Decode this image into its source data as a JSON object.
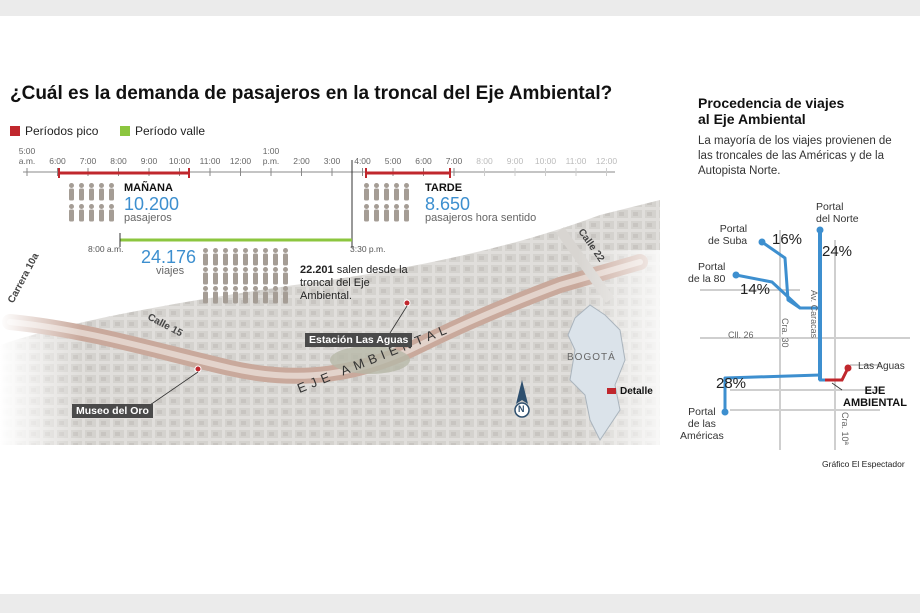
{
  "title": "¿Cuál es la demanda de pasajeros en la troncal del Eje Ambiental?",
  "legend": {
    "peak": {
      "label": "Períodos pico",
      "color": "#c0272d"
    },
    "valley": {
      "label": "Período valle",
      "color": "#8cc63f"
    }
  },
  "timeline": [
    {
      "l1": "5:00",
      "l2": "a.m.",
      "faint": false
    },
    {
      "l1": "6:00",
      "l2": "",
      "faint": false
    },
    {
      "l1": "7:00",
      "l2": "",
      "faint": false
    },
    {
      "l1": "8:00",
      "l2": "",
      "faint": false
    },
    {
      "l1": "9:00",
      "l2": "",
      "faint": false
    },
    {
      "l1": "10:00",
      "l2": "",
      "faint": false
    },
    {
      "l1": "11:00",
      "l2": "",
      "faint": false
    },
    {
      "l1": "12:00",
      "l2": "",
      "faint": false
    },
    {
      "l1": "1:00",
      "l2": "p.m.",
      "faint": false
    },
    {
      "l1": "2:00",
      "l2": "",
      "faint": false
    },
    {
      "l1": "3:00",
      "l2": "",
      "faint": false
    },
    {
      "l1": "4:00",
      "l2": "",
      "faint": false
    },
    {
      "l1": "5:00",
      "l2": "",
      "faint": false
    },
    {
      "l1": "6:00",
      "l2": "",
      "faint": false
    },
    {
      "l1": "7:00",
      "l2": "",
      "faint": false
    },
    {
      "l1": "8:00",
      "l2": "",
      "faint": true
    },
    {
      "l1": "9:00",
      "l2": "",
      "faint": true
    },
    {
      "l1": "10:00",
      "l2": "",
      "faint": true
    },
    {
      "l1": "11:00",
      "l2": "",
      "faint": true
    },
    {
      "l1": "12:00",
      "l2": "",
      "faint": true
    }
  ],
  "morning": {
    "label": "MAÑANA",
    "value": "10.200",
    "unit": "pasajeros"
  },
  "afternoon": {
    "label": "TARDE",
    "value": "8.650",
    "unit": "pasajeros hora sentido"
  },
  "valley": {
    "start": "8:00 a.m.",
    "end": "3:30 p.m.",
    "value": "24.176",
    "unit": "viajes",
    "note_value": "22.201",
    "note_text": " salen desde la troncal del Eje Ambiental."
  },
  "map_labels": {
    "carrera": "Carrera 10a",
    "calle15": "Calle 15",
    "calle22": "Calle 22",
    "eje": "EJE AMBIENTAL",
    "station": "Estación Las Aguas",
    "museum": "Museo del Oro",
    "city": "BOGOTÁ",
    "detail": "Detalle",
    "north": "N"
  },
  "right": {
    "title_line1": "Procedencia de viajes",
    "title_line2": "al Eje Ambiental",
    "subtitle": "La mayoría de los viajes provienen de las troncales de las Américas y de la Autopista Norte.",
    "suba_l1": "Portal",
    "suba_l2": "de Suba",
    "suba_pct": "16%",
    "norte_l1": "Portal",
    "norte_l2": "del Norte",
    "norte_pct": "24%",
    "p80_l1": "Portal",
    "p80_l2": "de la 80",
    "p80_pct": "14%",
    "americas_l1": "Portal",
    "americas_l2": "de las",
    "americas_l3": "Américas",
    "americas_pct": "28%",
    "caracas": "Av. Caracas",
    "cra30": "Cra. 30",
    "cll26": "Cll. 26",
    "cra10": "Cra. 10ª",
    "lasaguas": "Las Aguas",
    "eje_l1": "EJE",
    "eje_l2": "AMBIENTAL",
    "accent": "#3d8fcf",
    "red": "#c0272d"
  },
  "credit": "Gráfico El Espectador"
}
